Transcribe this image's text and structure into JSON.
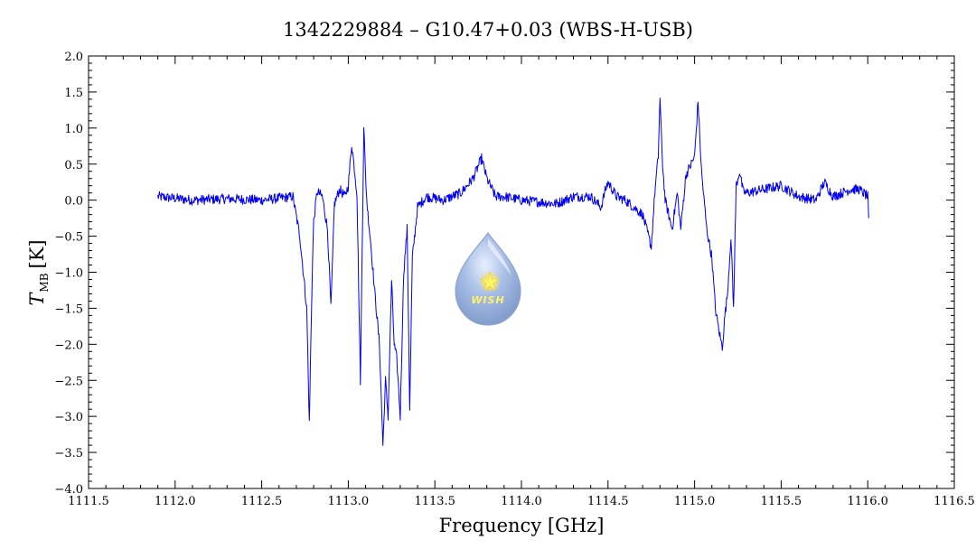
{
  "chart_data": {
    "type": "line",
    "title": "1342229884 – G10.47+0.03 (WBS-H-USB)",
    "xlabel": "Frequency [GHz]",
    "ylabel": {
      "symbol": "T",
      "subscript": "MB",
      "unit": "[K]"
    },
    "xlim": [
      1111.5,
      1116.5
    ],
    "ylim": [
      -4.0,
      2.0
    ],
    "x_ticks": [
      "1111.5",
      "1112.0",
      "1112.5",
      "1113.0",
      "1113.5",
      "1114.0",
      "1114.5",
      "1115.0",
      "1115.5",
      "1116.0",
      "1116.5"
    ],
    "y_ticks": [
      "2.0",
      "1.5",
      "1.0",
      "0.5",
      "0.0",
      "−0.5",
      "−1.0",
      "−1.5",
      "−2.0",
      "−2.5",
      "−3.0",
      "−3.5",
      "−4.0"
    ],
    "grid": false,
    "line_color": "#0000ee",
    "logo_text": "WISH",
    "series": [
      {
        "x": [
          1111.9,
          1112.1,
          1112.3,
          1112.5,
          1112.68,
          1112.72,
          1112.76,
          1112.775,
          1112.79,
          1112.8,
          1112.82,
          1112.85,
          1112.88,
          1112.9,
          1112.92,
          1112.95,
          1112.98,
          1113.0,
          1113.02,
          1113.05,
          1113.07,
          1113.09,
          1113.1,
          1113.11,
          1113.13,
          1113.15,
          1113.18,
          1113.2,
          1113.215,
          1113.23,
          1113.25,
          1113.265,
          1113.28,
          1113.3,
          1113.32,
          1113.34,
          1113.355,
          1113.37,
          1113.4,
          1113.45,
          1113.55,
          1113.65,
          1113.72,
          1113.77,
          1113.8,
          1113.85,
          1113.9,
          1114.0,
          1114.2,
          1114.3,
          1114.4,
          1114.46,
          1114.48,
          1114.5,
          1114.55,
          1114.6,
          1114.7,
          1114.75,
          1114.77,
          1114.79,
          1114.8,
          1114.815,
          1114.83,
          1114.87,
          1114.9,
          1114.92,
          1114.95,
          1115.0,
          1115.02,
          1115.04,
          1115.07,
          1115.1,
          1115.12,
          1115.14,
          1115.16,
          1115.175,
          1115.19,
          1115.21,
          1115.225,
          1115.24,
          1115.26,
          1115.28,
          1115.3,
          1115.4,
          1115.5,
          1115.6,
          1115.7,
          1115.75,
          1115.8,
          1115.85,
          1115.9,
          1115.95,
          1116.0,
          1116.005
        ],
        "y": [
          0.05,
          0.0,
          0.02,
          0.0,
          0.05,
          -0.5,
          -1.5,
          -3.1,
          -1.2,
          -0.3,
          0.12,
          0.05,
          -0.4,
          -1.5,
          -0.05,
          0.15,
          0.05,
          0.2,
          0.78,
          0.1,
          -2.5,
          1.05,
          0.3,
          -0.1,
          -0.6,
          -1.2,
          -2.0,
          -3.4,
          -2.5,
          -3.0,
          -1.1,
          -2.0,
          -2.2,
          -3.0,
          -1.0,
          -0.4,
          -2.9,
          -0.8,
          -0.1,
          0.05,
          0.0,
          0.1,
          0.3,
          0.58,
          0.3,
          0.05,
          0.05,
          0.0,
          -0.05,
          0.05,
          0.05,
          -0.1,
          0.1,
          0.25,
          0.05,
          0.0,
          -0.2,
          -0.65,
          0.1,
          0.6,
          1.4,
          0.5,
          0.0,
          -0.4,
          0.1,
          -0.4,
          0.35,
          0.6,
          1.38,
          0.4,
          -0.4,
          -0.8,
          -1.5,
          -1.8,
          -2.05,
          -1.6,
          -1.3,
          -0.5,
          -1.5,
          0.2,
          0.4,
          0.12,
          0.1,
          0.15,
          0.2,
          0.05,
          0.0,
          0.25,
          0.05,
          0.1,
          0.15,
          0.15,
          0.05,
          -0.25
        ]
      }
    ]
  }
}
